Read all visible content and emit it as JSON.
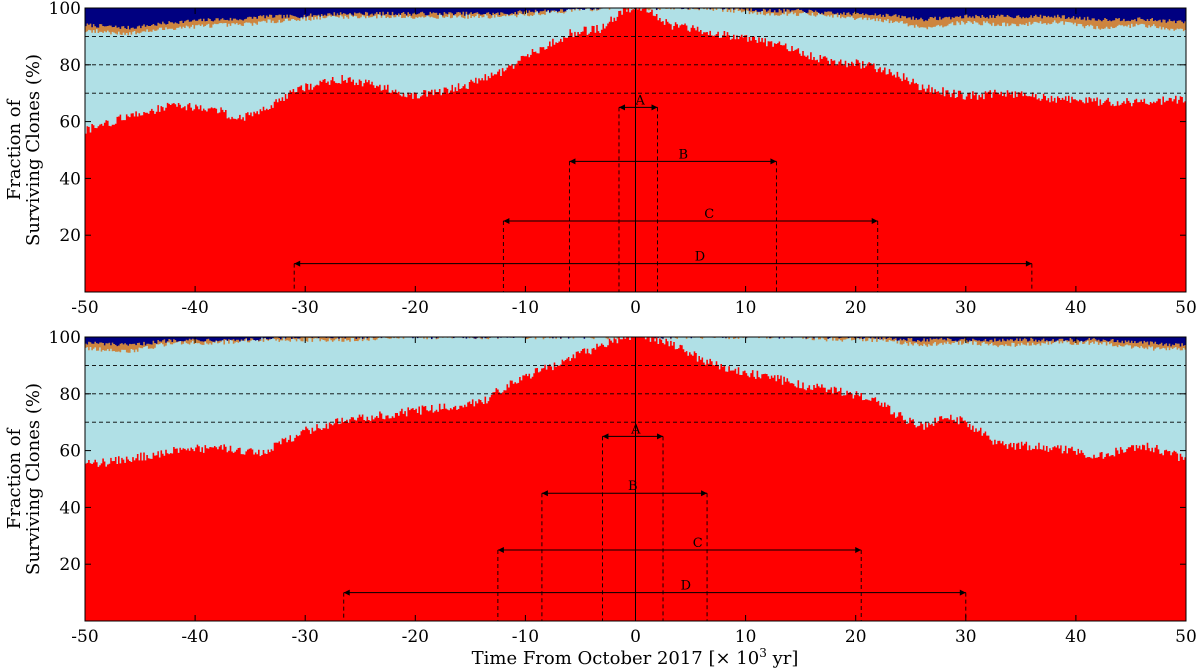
{
  "colors": {
    "inner": "#ff0000",
    "mid": "#b0e0e6",
    "outer": "#cd853f",
    "top": "#000080"
  },
  "xlabel_prefix": "Time From October 2017 [",
  "xlabel_times": "× 10",
  "xlabel_exp": "3",
  "xlabel_suffix": " yr]",
  "chart_data": [
    {
      "type": "area",
      "stacked": true,
      "ylabel_line1": "Fraction of",
      "ylabel_line2": "Surviving Clones (%)",
      "xlim": [
        -50,
        50
      ],
      "ylim": [
        0,
        100
      ],
      "xticks": [
        "-50",
        "-40",
        "-30",
        "-20",
        "-10",
        "0",
        "10",
        "20",
        "30",
        "40",
        "50"
      ],
      "yticks": [
        "20",
        "40",
        "60",
        "80",
        "100"
      ],
      "ref_lines": [
        70,
        80,
        90
      ],
      "x": [
        -50,
        -46,
        -42,
        -38,
        -36,
        -34,
        -31,
        -27,
        -24,
        -20,
        -16,
        -12,
        -9,
        -6,
        -3,
        -1,
        0,
        1,
        3,
        6,
        9,
        12,
        15,
        18,
        21,
        24,
        26,
        30,
        34,
        38,
        42,
        46,
        50
      ],
      "series": [
        {
          "values": [
            57,
            62,
            66,
            64,
            61,
            64,
            71,
            75,
            73,
            69,
            72,
            78,
            85,
            91,
            93,
            100,
            100,
            100,
            94,
            92,
            90,
            88,
            84,
            81,
            80,
            76,
            72,
            69,
            70,
            68,
            67,
            67,
            68
          ]
        },
        {
          "values": [
            92,
            91,
            93,
            94,
            94,
            95,
            96,
            97,
            97,
            97,
            97,
            97,
            98,
            99,
            100,
            100,
            100,
            100,
            100,
            100,
            99,
            98,
            98,
            97,
            96,
            95,
            93,
            95,
            94,
            95,
            93,
            94,
            92
          ]
        },
        {
          "values": [
            94,
            93,
            95,
            96,
            96,
            97,
            97,
            98,
            98,
            98,
            98,
            98,
            99,
            99,
            100,
            100,
            100,
            100,
            100,
            100,
            100,
            99,
            99,
            98,
            98,
            97,
            96,
            97,
            97,
            97,
            96,
            96,
            95
          ]
        }
      ],
      "intervals": [
        {
          "label": "A",
          "x0": -1.5,
          "x1": 2,
          "y": 65
        },
        {
          "label": "B",
          "x0": -6,
          "x1": 12.8,
          "y": 46
        },
        {
          "label": "C",
          "x0": -12,
          "x1": 22,
          "y": 25
        },
        {
          "label": "D",
          "x0": -31,
          "x1": 36,
          "y": 10
        }
      ]
    },
    {
      "type": "area",
      "stacked": true,
      "ylabel_line1": "Fraction of",
      "ylabel_line2": "Surviving Clones (%)",
      "xlim": [
        -50,
        50
      ],
      "ylim": [
        0,
        100
      ],
      "xticks": [
        "-50",
        "-40",
        "-30",
        "-20",
        "-10",
        "0",
        "10",
        "20",
        "30",
        "40",
        "50"
      ],
      "yticks": [
        "20",
        "40",
        "60",
        "80",
        "100"
      ],
      "ref_lines": [
        70,
        80,
        90
      ],
      "x": [
        -50,
        -46,
        -42,
        -38,
        -34,
        -30,
        -26,
        -22,
        -18,
        -14,
        -11,
        -8,
        -5,
        -3,
        -1,
        0,
        1,
        3,
        6,
        9,
        12,
        15,
        18,
        21,
        24,
        26,
        28,
        30,
        33,
        38,
        42,
        46,
        50
      ],
      "series": [
        {
          "values": [
            55,
            57,
            60,
            61,
            59,
            67,
            71,
            73,
            75,
            77,
            85,
            89,
            94,
            97,
            100,
            100,
            100,
            98,
            92,
            88,
            86,
            83,
            81,
            79,
            72,
            68,
            72,
            70,
            62,
            61,
            58,
            62,
            57
          ]
        },
        {
          "values": [
            96,
            95,
            98,
            98,
            99,
            99,
            99,
            100,
            100,
            100,
            100,
            100,
            100,
            100,
            100,
            100,
            100,
            100,
            100,
            100,
            100,
            100,
            99,
            99,
            98,
            97,
            98,
            98,
            97,
            98,
            98,
            96,
            96
          ]
        },
        {
          "values": [
            98,
            97,
            99,
            99,
            99,
            100,
            100,
            100,
            100,
            100,
            100,
            100,
            100,
            100,
            100,
            100,
            100,
            100,
            100,
            100,
            100,
            100,
            100,
            100,
            99,
            99,
            99,
            99,
            99,
            99,
            99,
            98,
            97
          ]
        }
      ],
      "intervals": [
        {
          "label": "A",
          "x0": -3,
          "x1": 2.5,
          "y": 65
        },
        {
          "label": "B",
          "x0": -8.5,
          "x1": 6.5,
          "y": 45
        },
        {
          "label": "C",
          "x0": -12.5,
          "x1": 20.5,
          "y": 25
        },
        {
          "label": "D",
          "x0": -26.5,
          "x1": 30,
          "y": 10
        }
      ]
    }
  ]
}
